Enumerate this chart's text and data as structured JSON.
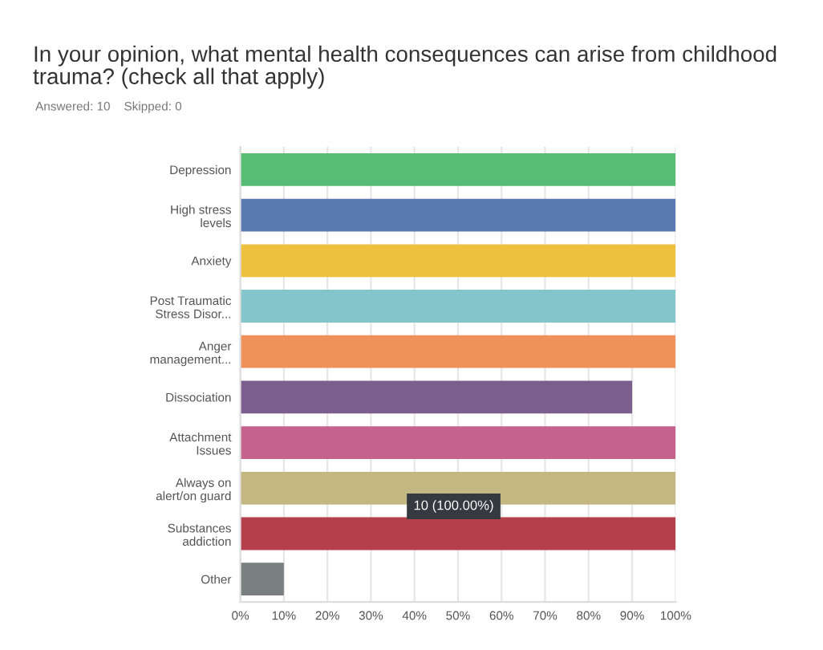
{
  "chart_data": {
    "type": "bar",
    "orientation": "horizontal",
    "title": "In your opinion, what mental health consequences can arise from childhood\ntrauma? (check all that apply)",
    "subtitle": "Answered: 10    Skipped: 0",
    "categories": [
      "Depression",
      "High stress\nlevels",
      "Anxiety",
      "Post Traumatic\nStress Disor...",
      "Anger\nmanagement...",
      "Dissociation",
      "Attachment\nIssues",
      "Always on\nalert/on guard",
      "Substances\naddiction",
      "Other"
    ],
    "values": [
      100,
      100,
      100,
      100,
      100,
      90,
      100,
      100,
      100,
      10
    ],
    "colors": [
      "#57bd74",
      "#5a7ab3",
      "#efbf3e",
      "#82c6cb",
      "#ef915b",
      "#7a5e8d",
      "#c5628e",
      "#c4b882",
      "#b3404a",
      "#7a7f82"
    ],
    "xlim": [
      0,
      100
    ],
    "xticks": [
      {
        "value": 0,
        "label": "0%"
      },
      {
        "value": 10,
        "label": "10%"
      },
      {
        "value": 20,
        "label": "20%"
      },
      {
        "value": 30,
        "label": "30%"
      },
      {
        "value": 40,
        "label": "40%"
      },
      {
        "value": 50,
        "label": "50%"
      },
      {
        "value": 60,
        "label": "60%"
      },
      {
        "value": 70,
        "label": "70%"
      },
      {
        "value": 80,
        "label": "80%"
      },
      {
        "value": 90,
        "label": "90%"
      },
      {
        "value": 100,
        "label": "100%"
      }
    ],
    "grid": "x",
    "legend": false,
    "annotations": [
      "10 (100.00%)"
    ]
  }
}
